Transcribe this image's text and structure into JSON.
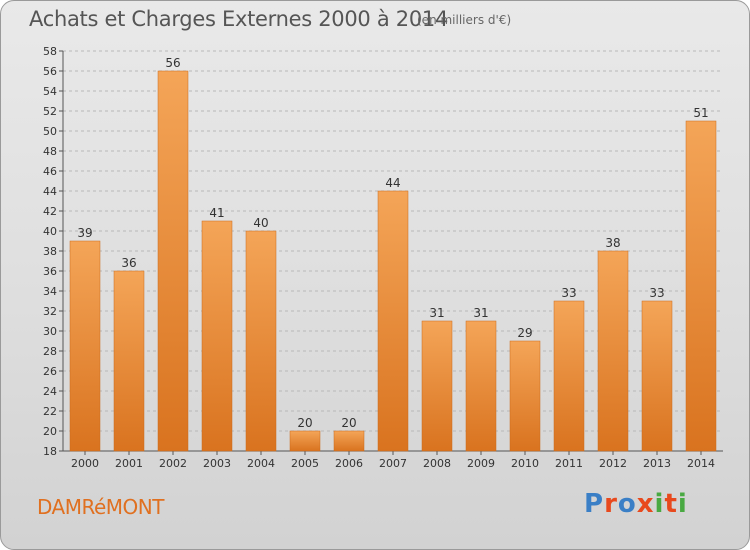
{
  "header": {
    "title": "Achats et Charges Externes 2000 à 2014",
    "subtitle": "(en milliers d'€)"
  },
  "footer": {
    "commune": "DAMRéMONT",
    "logo_text": "Proxiti",
    "logo_colors": [
      "#3a7fc6",
      "#e8491d",
      "#3a7fc6",
      "#e8491d",
      "#49a942",
      "#e8491d",
      "#49a942"
    ]
  },
  "colors": {
    "bar_top": "#f4a558",
    "bar_bottom": "#d9731f",
    "grid": "#b8b8b8"
  },
  "chart_data": {
    "type": "bar",
    "title": "Achats et Charges Externes 2000 à 2014",
    "subtitle": "(en milliers d'€)",
    "categories": [
      "2000",
      "2001",
      "2002",
      "2003",
      "2004",
      "2005",
      "2006",
      "2007",
      "2008",
      "2009",
      "2010",
      "2011",
      "2012",
      "2013",
      "2014"
    ],
    "values": [
      39,
      36,
      56,
      41,
      40,
      20,
      20,
      44,
      31,
      31,
      29,
      33,
      38,
      33,
      51
    ],
    "ylim": [
      18,
      58
    ],
    "yticks": [
      18,
      20,
      22,
      24,
      26,
      28,
      30,
      32,
      34,
      36,
      38,
      40,
      42,
      44,
      46,
      48,
      50,
      52,
      54,
      56,
      58
    ],
    "grid": true,
    "legend": "none"
  }
}
